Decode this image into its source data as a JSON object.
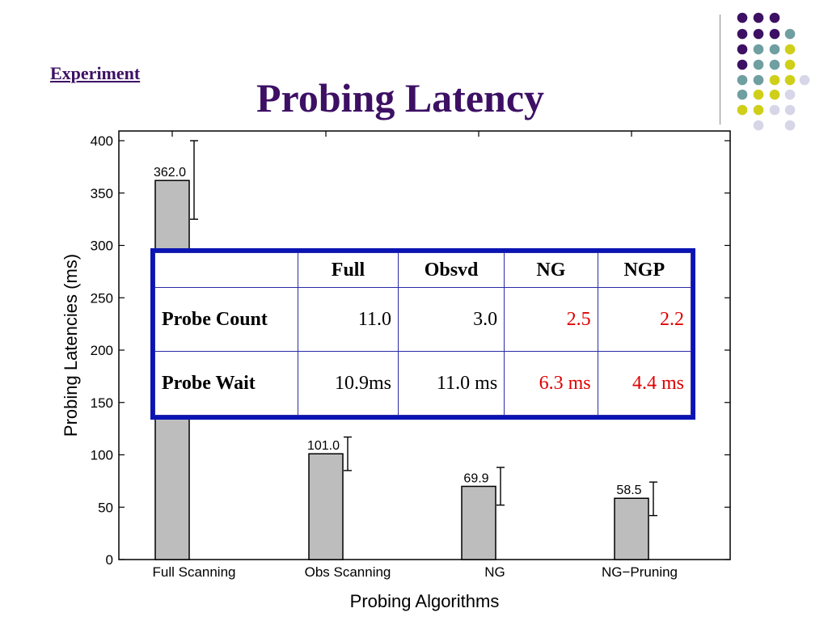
{
  "slide": {
    "link_text": "Experiment",
    "title": "Probing Latency"
  },
  "colors": {
    "title": "#3d1064",
    "bar_fill": "#bdbdbd",
    "table_border": "#0a14b4",
    "highlight": "#e00000",
    "dot_purple": "#3d1064",
    "dot_teal": "#6f9fa0",
    "dot_yellow": "#cfcf1a",
    "dot_lavender": "#d6d6e8"
  },
  "chart_data": {
    "type": "bar",
    "categories": [
      "Full Scanning",
      "Obs Scanning",
      "NG",
      "NG−Pruning"
    ],
    "values": [
      362.0,
      101.0,
      69.9,
      58.5
    ],
    "value_labels": [
      "362.0",
      "101.0",
      "69.9",
      "58.5"
    ],
    "error_bars": [
      [
        325,
        400
      ],
      [
        85,
        117
      ],
      [
        52,
        88
      ],
      [
        42,
        74
      ]
    ],
    "xlabel": "Probing Algorithms",
    "ylabel": "Probing Latencies (ms)",
    "ylim": [
      0,
      400
    ],
    "yticks": [
      0,
      50,
      100,
      150,
      200,
      250,
      300,
      350,
      400
    ],
    "grid": false
  },
  "table": {
    "headers": [
      "",
      "Full",
      "Obsvd",
      "NG",
      "NGP"
    ],
    "rows": [
      {
        "label": "Probe Count",
        "cells": [
          "11.0",
          "3.0",
          "2.5",
          "2.2"
        ]
      },
      {
        "label": "Probe Wait",
        "cells": [
          "10.9ms",
          "11.0 ms",
          "6.3 ms",
          "4.4 ms"
        ]
      }
    ]
  }
}
